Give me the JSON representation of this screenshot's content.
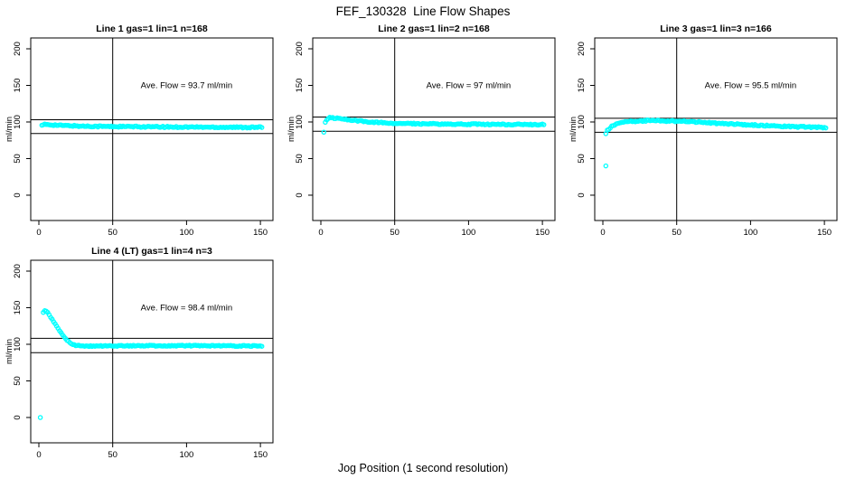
{
  "figure_title": "FEF_130328  Line Flow Shapes",
  "x_axis_label": "Jog Position (1 second resolution)",
  "y_axis_label": "ml/min",
  "colors": {
    "points": "#00FFFF",
    "axis": "#000000",
    "text": "#000000",
    "background": "#FFFFFF"
  },
  "chart_data": [
    {
      "type": "scatter",
      "title": "Line 1 gas=1 lin=1 n=168",
      "row": 0,
      "col": 0,
      "n": 168,
      "ave_flow": 93.7,
      "annotation": "Ave. Flow =  93.7  ml/min",
      "ylabel": "ml/min",
      "xlim": [
        -5.5,
        158.5
      ],
      "ylim": [
        -34.6,
        214.8
      ],
      "xticks": [
        0,
        50,
        100,
        150
      ],
      "yticks": [
        0,
        50,
        100,
        150,
        200
      ],
      "vline_x": 50,
      "hlines": [
        84.3,
        103.1
      ],
      "outliers": [],
      "trend": [
        [
          2,
          95.0
        ],
        [
          4,
          96.5
        ],
        [
          8,
          96.3
        ],
        [
          15,
          95.3
        ],
        [
          30,
          94.3
        ],
        [
          50,
          93.8
        ],
        [
          80,
          93.3
        ],
        [
          110,
          93.0
        ],
        [
          151,
          92.6
        ]
      ],
      "noise": 0.9,
      "marker": "open-circle"
    },
    {
      "type": "scatter",
      "title": "Line 2 gas=1 lin=2 n=168",
      "row": 0,
      "col": 1,
      "n": 168,
      "ave_flow": 97,
      "annotation": "Ave. Flow =  97  ml/min",
      "ylabel": "ml/min",
      "xlim": [
        -5.5,
        158.5
      ],
      "ylim": [
        -34.6,
        214.8
      ],
      "xticks": [
        0,
        50,
        100,
        150
      ],
      "yticks": [
        0,
        50,
        100,
        150,
        200
      ],
      "vline_x": 50,
      "hlines": [
        87.3,
        106.7
      ],
      "outliers": [
        [
          2,
          86
        ]
      ],
      "trend": [
        [
          3,
          100.0
        ],
        [
          4,
          103.5
        ],
        [
          6,
          105.8
        ],
        [
          10,
          105.2
        ],
        [
          20,
          102.5
        ],
        [
          35,
          99.8
        ],
        [
          50,
          98.3
        ],
        [
          70,
          97.4
        ],
        [
          100,
          96.9
        ],
        [
          151,
          96.4
        ]
      ],
      "noise": 0.8,
      "marker": "open-circle"
    },
    {
      "type": "scatter",
      "title": "Line 3 gas=1 lin=3 n=166",
      "row": 0,
      "col": 2,
      "n": 166,
      "ave_flow": 95.5,
      "annotation": "Ave. Flow =  95.5  ml/min",
      "ylabel": "ml/min",
      "xlim": [
        -5.5,
        158.5
      ],
      "ylim": [
        -34.6,
        214.8
      ],
      "xticks": [
        0,
        50,
        100,
        150
      ],
      "yticks": [
        0,
        50,
        100,
        150,
        200
      ],
      "vline_x": 50,
      "hlines": [
        86.0,
        105.1
      ],
      "outliers": [
        [
          2,
          40
        ],
        [
          2,
          84
        ]
      ],
      "trend": [
        [
          3,
          88.5
        ],
        [
          5,
          92.5
        ],
        [
          8,
          96.5
        ],
        [
          12,
          99.0
        ],
        [
          20,
          100.8
        ],
        [
          30,
          101.8
        ],
        [
          45,
          101.3
        ],
        [
          60,
          100.3
        ],
        [
          80,
          98.0
        ],
        [
          100,
          96.0
        ],
        [
          120,
          94.0
        ],
        [
          151,
          92.6
        ]
      ],
      "noise": 0.9,
      "marker": "open-circle"
    },
    {
      "type": "scatter",
      "title": "Line 4 (LT) gas=1 lin=4 n=3",
      "row": 1,
      "col": 0,
      "n": 3,
      "ave_flow": 98.4,
      "annotation": "Ave. Flow =  98.4  ml/min",
      "ylabel": "ml/min",
      "xlim": [
        -5.5,
        158.5
      ],
      "ylim": [
        -34.6,
        214.8
      ],
      "xticks": [
        0,
        50,
        100,
        150
      ],
      "yticks": [
        0,
        50,
        100,
        150,
        200
      ],
      "vline_x": 50,
      "hlines": [
        88.6,
        108.2
      ],
      "outliers": [
        [
          1,
          0
        ]
      ],
      "trend": [
        [
          3,
          144.0
        ],
        [
          4,
          146.5
        ],
        [
          5,
          145.5
        ],
        [
          6,
          143.0
        ],
        [
          8,
          137.0
        ],
        [
          10,
          131.0
        ],
        [
          13,
          121.5
        ],
        [
          16,
          112.5
        ],
        [
          19,
          105.5
        ],
        [
          22,
          100.8
        ],
        [
          25,
          98.6
        ],
        [
          30,
          97.6
        ],
        [
          40,
          97.7
        ],
        [
          60,
          98.0
        ],
        [
          100,
          98.1
        ],
        [
          151,
          97.6
        ]
      ],
      "noise": 0.7,
      "marker": "open-circle"
    }
  ]
}
